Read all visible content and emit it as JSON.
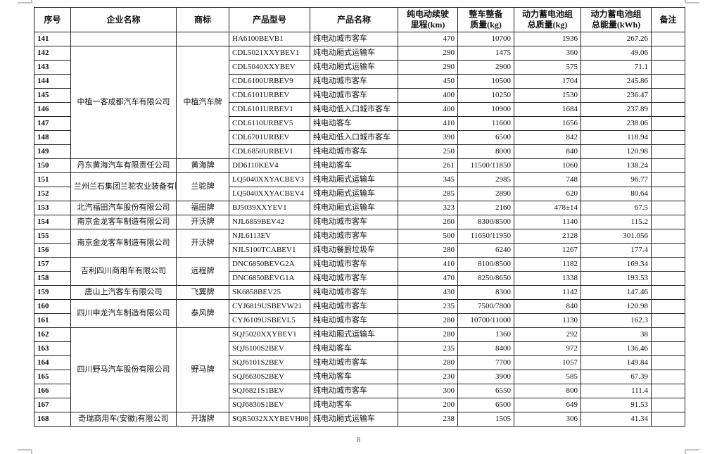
{
  "table": {
    "header": [
      [
        "序号"
      ],
      [
        "企业名称"
      ],
      [
        "商标"
      ],
      [
        "产品型号"
      ],
      [
        "产品名称"
      ],
      [
        "纯电动续驶",
        "里程(km)"
      ],
      [
        "整车整备",
        "质量(kg)"
      ],
      [
        "动力蓄电池组",
        "总质量(kg)"
      ],
      [
        "动力蓄电池组",
        "总能量(kWh)"
      ],
      [
        "备注"
      ]
    ],
    "groups": [
      {
        "rows": [
          [
            "141",
            "HA6100BEVB1",
            "纯电动城市客车",
            "470",
            "10700",
            "1936",
            "267.26"
          ]
        ]
      },
      {
        "company": "中植一客成都汽车有限公司",
        "brand": "中植汽车牌",
        "rows": [
          [
            "142",
            "CDL5021XXYBEV1",
            "纯电动厢式运输车",
            "290",
            "1475",
            "360",
            "49.06"
          ],
          [
            "143",
            "CDL5040XXYBEV",
            "纯电动厢式运输车",
            "290",
            "2900",
            "575",
            "71.1"
          ],
          [
            "144",
            "CDL6100URBEV9",
            "纯电动城市客车",
            "450",
            "10500",
            "1704",
            "245.86"
          ],
          [
            "145",
            "CDL6101URBEV",
            "纯电动城市客车",
            "400",
            "10250",
            "1530",
            "236.47"
          ],
          [
            "146",
            "CDL6101URBEV1",
            "纯电动低入口城市客车",
            "400",
            "10900",
            "1684",
            "237.89"
          ],
          [
            "147",
            "CDL6110URBEV5",
            "纯电动客车",
            "410",
            "11600",
            "1656",
            "238.06"
          ],
          [
            "148",
            "CDL6701URBEV",
            "纯电动低入口城市客车",
            "390",
            "6500",
            "842",
            "118.94"
          ],
          [
            "149",
            "CDL6850URBEV1",
            "纯电动城市客车",
            "250",
            "8000",
            "840",
            "120.98"
          ]
        ]
      },
      {
        "company": "丹东黄海汽车有限责任公司",
        "brand": "黄海牌",
        "rows": [
          [
            "150",
            "DD6110KEV4",
            "纯电动客车",
            "261",
            "11500/11850",
            "1060",
            "138.24"
          ]
        ]
      },
      {
        "company": "兰州兰石集团兰驼农业装备有限公司",
        "brand": "兰驼牌",
        "rows": [
          [
            "151",
            "LQ5040XXYACBEV3",
            "纯电动厢式运输车",
            "345",
            "2985",
            "748",
            "96.77"
          ],
          [
            "152",
            "LQ5040XXYACBEV4",
            "纯电动厢式运输车",
            "285",
            "2890",
            "620",
            "80.64"
          ]
        ]
      },
      {
        "company": "北汽福田汽车股份有限公司",
        "brand": "福田牌",
        "rows": [
          [
            "153",
            "BJ5039XXYEV1",
            "纯电动厢式运输车",
            "323",
            "2160",
            "478±14",
            "67.5"
          ]
        ]
      },
      {
        "company": "南京金龙客车制造有限公司",
        "brand": "开沃牌",
        "rows": [
          [
            "154",
            "NJL6859BEV42",
            "纯电动城市客车",
            "260",
            "8300/8500",
            "1140",
            "115.2"
          ]
        ]
      },
      {
        "company": "南京金龙客车制造有限公司",
        "brand": "开沃牌",
        "rows": [
          [
            "155",
            "NJL6113EV",
            "纯电动城市客车",
            "500",
            "11650/11950",
            "2128",
            "301.056"
          ],
          [
            "156",
            "NJL5100TCABEV1",
            "纯电动餐厨垃圾车",
            "280",
            "6240",
            "1267",
            "177.4"
          ]
        ]
      },
      {
        "company": "吉利四川商用车有限公司",
        "brand": "远程牌",
        "rows": [
          [
            "157",
            "DNC6850BEVG2A",
            "纯电动城市客车",
            "410",
            "8100/8500",
            "1182",
            "169.34"
          ],
          [
            "158",
            "DNC6850BEVG1A",
            "纯电动城市客车",
            "470",
            "8250/8650",
            "1338",
            "193.53"
          ]
        ]
      },
      {
        "company": "唐山上汽客车有限公司",
        "brand": "飞翼牌",
        "rows": [
          [
            "159",
            "SK6858BEV25",
            "纯电动城市客车",
            "430",
            "8300",
            "1142",
            "147.46"
          ]
        ]
      },
      {
        "company": "四川申龙汽车制造有限公司",
        "brand": "泰风牌",
        "rows": [
          [
            "160",
            "CYJ6819USBEVW21",
            "纯电动城市客车",
            "235",
            "7500/7800",
            "840",
            "120.98"
          ],
          [
            "161",
            "CYJ6109USBEVL5",
            "纯电动城市客车",
            "280",
            "10700/11000",
            "1130",
            "162.3"
          ]
        ]
      },
      {
        "company": "四川野马汽车股份有限公司",
        "brand": "野马牌",
        "rows": [
          [
            "162",
            "SQJ5020XXYBEV1",
            "纯电动厢式运输车",
            "280",
            "1360",
            "292",
            "38"
          ],
          [
            "163",
            "SQJ6100S2BEV",
            "纯电动客车",
            "235",
            "8400",
            "972",
            "136.46"
          ],
          [
            "164",
            "SQJ6101S2BEV",
            "纯电动城市客车",
            "280",
            "7700",
            "1057",
            "149.84"
          ],
          [
            "165",
            "SQJ6630S2BEV",
            "纯电动客车",
            "230",
            "3900",
            "585",
            "67.39"
          ],
          [
            "166",
            "SQJ6821S1BEV",
            "纯电动城市客车",
            "300",
            "6550",
            "800",
            "111.4"
          ],
          [
            "167",
            "SQJ6830S1BEV",
            "纯电动客车",
            "200",
            "6500",
            "649",
            "91.53"
          ]
        ]
      },
      {
        "company": "奇瑞商用车(安徽)有限公司",
        "brand": "开瑞牌",
        "rows": [
          [
            "168",
            "SQR5032XXYBEVH08",
            "纯电动厢式运输车",
            "238",
            "1505",
            "306",
            "41.34"
          ]
        ]
      }
    ]
  },
  "page_number": "8"
}
